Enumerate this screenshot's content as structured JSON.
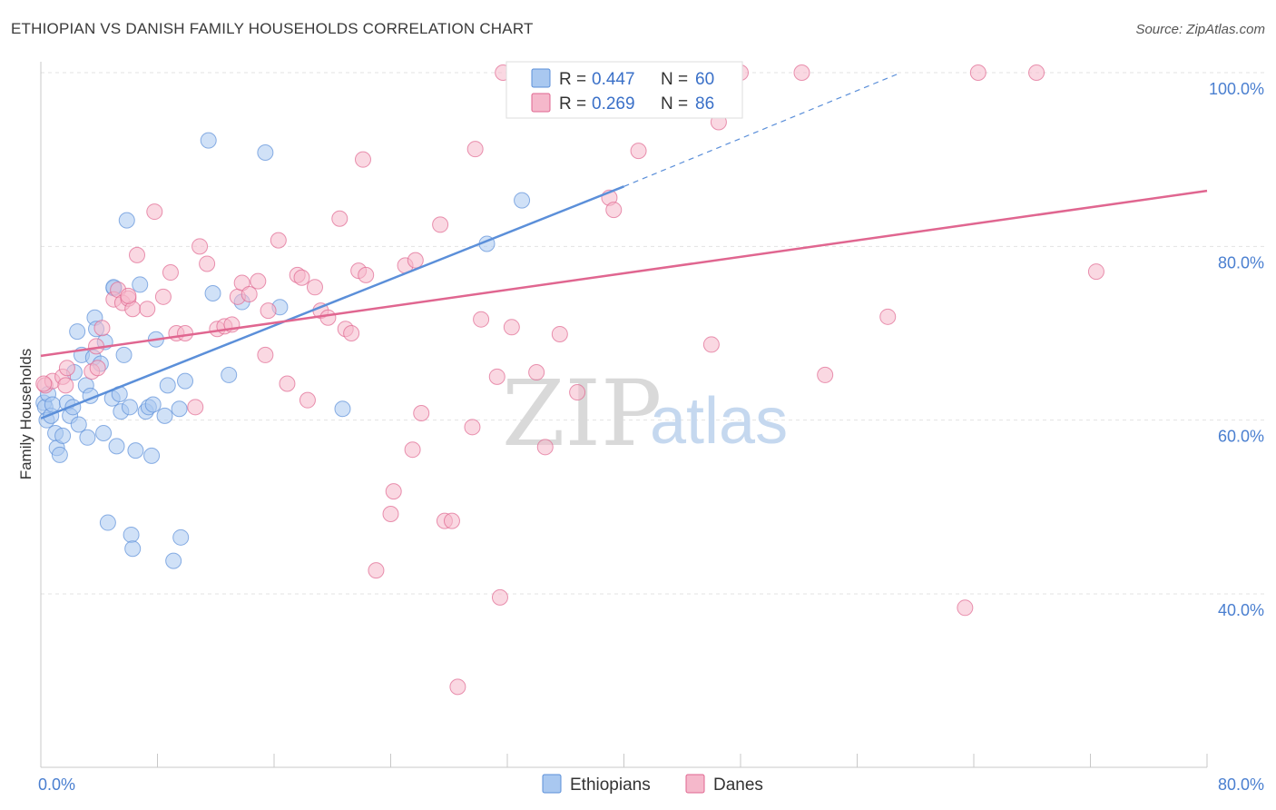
{
  "header": {
    "title": "ETHIOPIAN VS DANISH FAMILY HOUSEHOLDS CORRELATION CHART",
    "source": "Source: ZipAtlas.com"
  },
  "watermark": {
    "zip": "ZIP",
    "atlas": "atlas"
  },
  "stats_legend": {
    "rows": [
      {
        "r_label": "R =",
        "r_value": "0.447",
        "n_label": "N =",
        "n_value": "60",
        "color": "#a9c8f0"
      },
      {
        "r_label": "R =",
        "r_value": "0.269",
        "n_label": "N =",
        "n_value": "86",
        "color": "#f5b8cb"
      }
    ]
  },
  "bottom_legend": {
    "items": [
      {
        "label": "Ethiopians",
        "color": "#a9c8f0"
      },
      {
        "label": "Danes",
        "color": "#f5b8cb"
      }
    ]
  },
  "chart_data": {
    "type": "scatter",
    "title": "ETHIOPIAN VS DANISH FAMILY HOUSEHOLDS CORRELATION CHART",
    "xlabel": "",
    "ylabel": "Family Households",
    "xlim": [
      0,
      80
    ],
    "ylim": [
      20,
      101
    ],
    "x_tick_labels": [
      "0.0%",
      "80.0%"
    ],
    "y_tick_labels": [
      "100.0%",
      "80.0%",
      "60.0%",
      "40.0%"
    ],
    "y_ticks": [
      100,
      80,
      60,
      40
    ],
    "grid": true,
    "legend": "bottom",
    "series": [
      {
        "name": "Ethiopians",
        "color": "#5b8fd9",
        "fill": "#a9c8f0",
        "trend": {
          "x0": 0,
          "y0": 60.2,
          "x1": 40,
          "y1": 86.9,
          "dash_to_x": 59,
          "dash_to_y": 100
        },
        "points": [
          [
            0.2,
            62
          ],
          [
            0.3,
            61.5
          ],
          [
            0.4,
            60
          ],
          [
            0.5,
            63
          ],
          [
            0.7,
            60.5
          ],
          [
            0.8,
            61.8
          ],
          [
            1.0,
            58.5
          ],
          [
            1.1,
            56.8
          ],
          [
            1.3,
            56
          ],
          [
            1.5,
            58.2
          ],
          [
            1.8,
            62
          ],
          [
            2.0,
            60.5
          ],
          [
            2.3,
            65.5
          ],
          [
            2.5,
            70.2
          ],
          [
            2.6,
            59.5
          ],
          [
            2.8,
            67.5
          ],
          [
            3.1,
            64
          ],
          [
            3.2,
            58
          ],
          [
            3.4,
            62.8
          ],
          [
            3.6,
            67.2
          ],
          [
            3.7,
            71.8
          ],
          [
            3.8,
            70.5
          ],
          [
            4.1,
            66.5
          ],
          [
            4.3,
            58.5
          ],
          [
            4.4,
            69
          ],
          [
            4.6,
            48.2
          ],
          [
            4.9,
            62.5
          ],
          [
            5.0,
            75.2
          ],
          [
            5.2,
            57
          ],
          [
            5.4,
            63
          ],
          [
            5.5,
            61
          ],
          [
            5.7,
            67.5
          ],
          [
            5.9,
            83
          ],
          [
            6.1,
            61.5
          ],
          [
            6.2,
            46.8
          ],
          [
            6.3,
            45.2
          ],
          [
            6.5,
            56.5
          ],
          [
            6.8,
            75.6
          ],
          [
            7.2,
            61
          ],
          [
            7.4,
            61.5
          ],
          [
            7.6,
            55.9
          ],
          [
            7.7,
            61.8
          ],
          [
            7.9,
            69.3
          ],
          [
            8.5,
            60.5
          ],
          [
            8.7,
            64
          ],
          [
            9.1,
            43.8
          ],
          [
            9.5,
            61.3
          ],
          [
            9.6,
            46.5
          ],
          [
            9.9,
            64.5
          ],
          [
            11.5,
            92.2
          ],
          [
            11.8,
            74.6
          ],
          [
            12.9,
            65.2
          ],
          [
            13.8,
            73.6
          ],
          [
            15.4,
            90.8
          ],
          [
            16.4,
            73
          ],
          [
            20.7,
            61.3
          ],
          [
            30.6,
            80.3
          ],
          [
            33.0,
            85.3
          ],
          [
            5.0,
            75.3
          ],
          [
            2.2,
            61.5
          ]
        ]
      },
      {
        "name": "Danes",
        "color": "#e06690",
        "fill": "#f5b8cb",
        "trend": {
          "x0": 0,
          "y0": 67.4,
          "x1": 80,
          "y1": 86.4
        },
        "points": [
          [
            0.3,
            64
          ],
          [
            0.8,
            64.5
          ],
          [
            1.5,
            65
          ],
          [
            1.7,
            64
          ],
          [
            3.5,
            65.6
          ],
          [
            3.8,
            68.5
          ],
          [
            3.9,
            66
          ],
          [
            4.2,
            70.6
          ],
          [
            5.0,
            73.9
          ],
          [
            5.3,
            75
          ],
          [
            5.6,
            73.5
          ],
          [
            6.0,
            74
          ],
          [
            6.3,
            72.8
          ],
          [
            6.6,
            79
          ],
          [
            7.3,
            72.8
          ],
          [
            7.8,
            84
          ],
          [
            8.4,
            74.2
          ],
          [
            8.9,
            77
          ],
          [
            9.3,
            70
          ],
          [
            9.9,
            70
          ],
          [
            10.6,
            61.5
          ],
          [
            10.9,
            80
          ],
          [
            11.4,
            78
          ],
          [
            12.1,
            70.5
          ],
          [
            12.6,
            70.8
          ],
          [
            13.1,
            71
          ],
          [
            13.5,
            74.2
          ],
          [
            13.8,
            75.8
          ],
          [
            14.3,
            74.5
          ],
          [
            14.9,
            76
          ],
          [
            15.4,
            67.5
          ],
          [
            15.6,
            72.6
          ],
          [
            16.3,
            80.7
          ],
          [
            16.9,
            64.2
          ],
          [
            17.6,
            76.7
          ],
          [
            17.9,
            76.4
          ],
          [
            18.3,
            62.3
          ],
          [
            18.8,
            75.3
          ],
          [
            19.2,
            72.6
          ],
          [
            19.7,
            71.8
          ],
          [
            20.5,
            83.2
          ],
          [
            20.9,
            70.5
          ],
          [
            21.3,
            70
          ],
          [
            22.1,
            90
          ],
          [
            21.8,
            77.2
          ],
          [
            22.3,
            76.7
          ],
          [
            23.0,
            42.7
          ],
          [
            24.0,
            49.2
          ],
          [
            24.2,
            51.8
          ],
          [
            25.0,
            77.8
          ],
          [
            25.5,
            56.6
          ],
          [
            25.7,
            78.4
          ],
          [
            26.1,
            60.8
          ],
          [
            27.4,
            82.5
          ],
          [
            27.7,
            48.4
          ],
          [
            28.2,
            48.4
          ],
          [
            28.6,
            29.3
          ],
          [
            29.6,
            59.2
          ],
          [
            29.8,
            91.2
          ],
          [
            30.2,
            71.6
          ],
          [
            31.3,
            65
          ],
          [
            31.5,
            39.6
          ],
          [
            31.7,
            100
          ],
          [
            32.3,
            70.7
          ],
          [
            34.0,
            65.5
          ],
          [
            34.6,
            56.9
          ],
          [
            35.6,
            69.9
          ],
          [
            36.8,
            63.2
          ],
          [
            38.0,
            95.8
          ],
          [
            39.0,
            85.6
          ],
          [
            39.3,
            84.2
          ],
          [
            41.0,
            91
          ],
          [
            44.3,
            100
          ],
          [
            46.0,
            68.7
          ],
          [
            46.5,
            94.3
          ],
          [
            48.0,
            100
          ],
          [
            52.2,
            100
          ],
          [
            53.8,
            65.2
          ],
          [
            58.1,
            71.9
          ],
          [
            63.4,
            38.4
          ],
          [
            64.3,
            100
          ],
          [
            68.3,
            100
          ],
          [
            72.4,
            77.1
          ],
          [
            0.2,
            64.2
          ],
          [
            1.8,
            66
          ],
          [
            6.0,
            74.3
          ]
        ]
      }
    ]
  }
}
